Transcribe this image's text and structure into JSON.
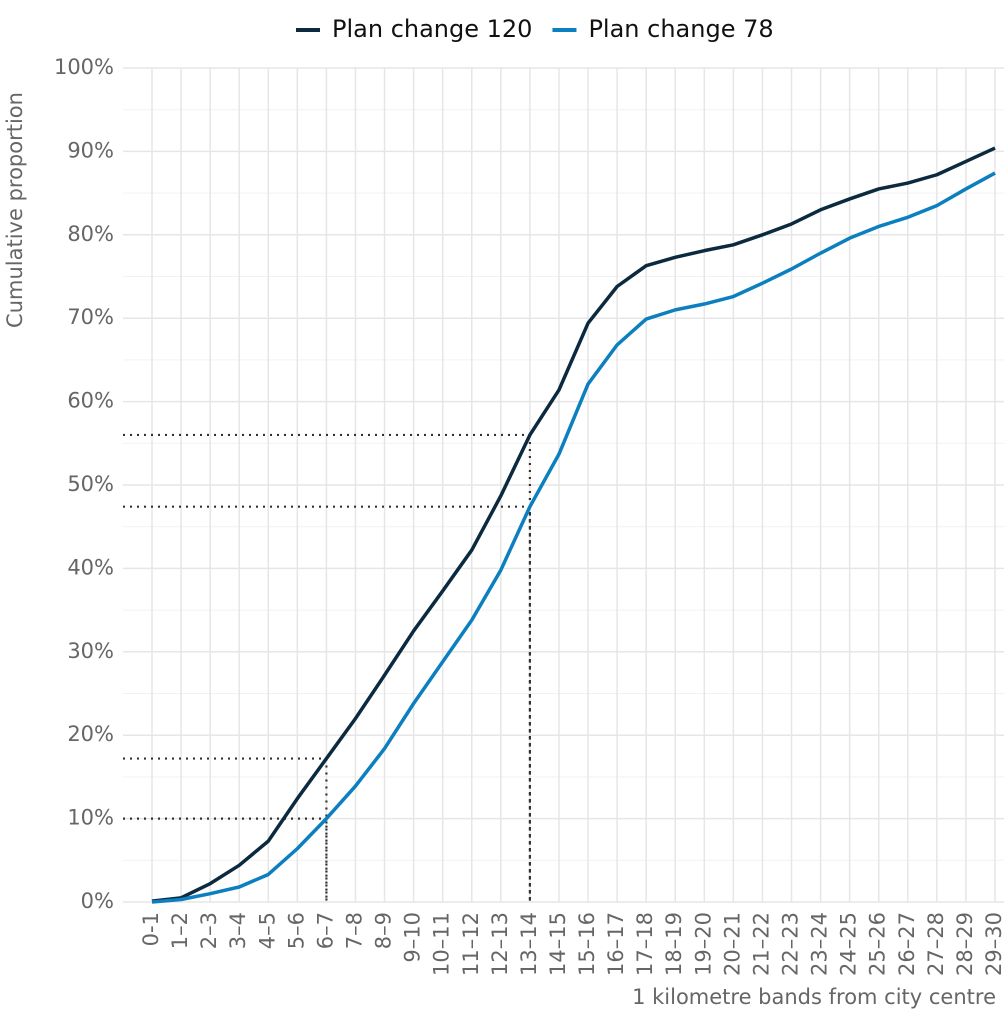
{
  "chart_data": {
    "type": "line",
    "x_label": "1 kilometre bands from city centre",
    "y_label": "Cumulative proportion",
    "categories": [
      "0-1",
      "1–2",
      "2–3",
      "3–4",
      "4–5",
      "5–6",
      "6–7",
      "7–8",
      "8–9",
      "9–10",
      "10–11",
      "11–12",
      "12–13",
      "13–14",
      "14–15",
      "15–16",
      "16–17",
      "17–18",
      "18–19",
      "19–20",
      "20–21",
      "21–22",
      "22–23",
      "23–24",
      "24–25",
      "25–26",
      "26–27",
      "27–28",
      "28–29",
      "29–30"
    ],
    "series": [
      {
        "name": "Plan change 120",
        "color": "#0b2a3f",
        "values": [
          0.1,
          0.5,
          2.2,
          4.4,
          7.3,
          12.4,
          17.2,
          22.0,
          27.2,
          32.5,
          37.3,
          42.2,
          48.7,
          56.0,
          61.4,
          69.4,
          73.8,
          76.3,
          77.3,
          78.1,
          78.8,
          80.0,
          81.3,
          83.0,
          84.3,
          85.5,
          86.2,
          87.2,
          88.8,
          90.4
        ]
      },
      {
        "name": "Plan change 78",
        "color": "#0b7fbf",
        "values": [
          0.0,
          0.3,
          1.0,
          1.8,
          3.3,
          6.4,
          10.0,
          13.9,
          18.4,
          23.8,
          28.8,
          33.8,
          39.8,
          47.4,
          53.7,
          62.1,
          66.8,
          69.9,
          71.0,
          71.7,
          72.6,
          74.2,
          75.9,
          77.8,
          79.6,
          81.0,
          82.1,
          83.5,
          85.5,
          87.4
        ]
      }
    ],
    "reference_points": [
      {
        "category": "6–7",
        "value": 17.2
      },
      {
        "category": "6–7",
        "value": 10.0
      },
      {
        "category": "13–14",
        "value": 56.0
      },
      {
        "category": "13–14",
        "value": 47.4
      }
    ],
    "ylim": [
      0,
      100
    ],
    "yticks": [
      {
        "value": 0,
        "label": "0%"
      },
      {
        "value": 10,
        "label": "10%"
      },
      {
        "value": 20,
        "label": "20%"
      },
      {
        "value": 30,
        "label": "30%"
      },
      {
        "value": 40,
        "label": "40%"
      },
      {
        "value": 50,
        "label": "50%"
      },
      {
        "value": 60,
        "label": "60%"
      },
      {
        "value": 70,
        "label": "70%"
      },
      {
        "value": 80,
        "label": "80%"
      },
      {
        "value": 90,
        "label": "90%"
      },
      {
        "value": 100,
        "label": "100%"
      }
    ],
    "grid": true,
    "legend": "top"
  }
}
